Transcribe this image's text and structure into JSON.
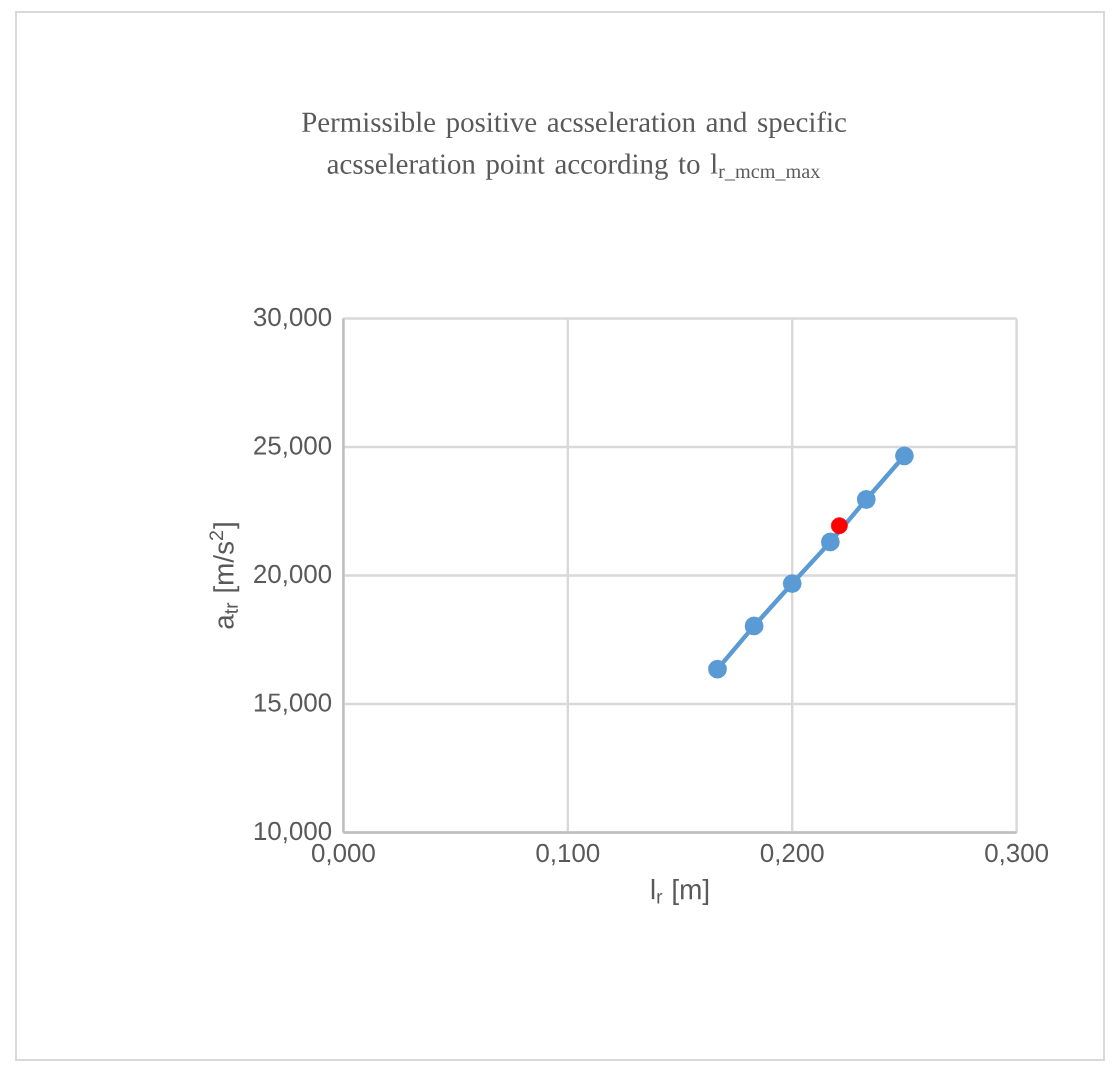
{
  "chart_data": {
    "type": "line",
    "title": "Permissible positive acsseleration and specific acsseleration point according to l$_{r_mcm_max}$",
    "xlabel": "l$_{r}$ [m]",
    "ylabel": "a$_{tr}$ [m/s$^{2}$]",
    "xlim": [
      0,
      0.3
    ],
    "ylim": [
      10,
      30
    ],
    "xticks": [
      {
        "value": 0,
        "label": "0,000"
      },
      {
        "value": 0.1,
        "label": "0,100"
      },
      {
        "value": 0.2,
        "label": "0,200"
      },
      {
        "value": 0.3,
        "label": "0,300"
      }
    ],
    "yticks": [
      {
        "value": 10,
        "label": "10,000"
      },
      {
        "value": 15,
        "label": "15,000"
      },
      {
        "value": 20,
        "label": "20,000"
      },
      {
        "value": 25,
        "label": "25,000"
      },
      {
        "value": 30,
        "label": "30,000"
      }
    ],
    "grid": true,
    "marker": "circle",
    "series": [
      {
        "color": "#5b9bd5",
        "x": [
          0.1667,
          0.183,
          0.2,
          0.217,
          0.233,
          0.25
        ],
        "values": [
          16.36,
          18.04,
          19.69,
          21.31,
          22.96,
          24.66
        ]
      },
      {
        "type": "scatter",
        "color": "#ff0000",
        "x": [
          0.221
        ],
        "values": [
          21.94
        ]
      }
    ]
  }
}
